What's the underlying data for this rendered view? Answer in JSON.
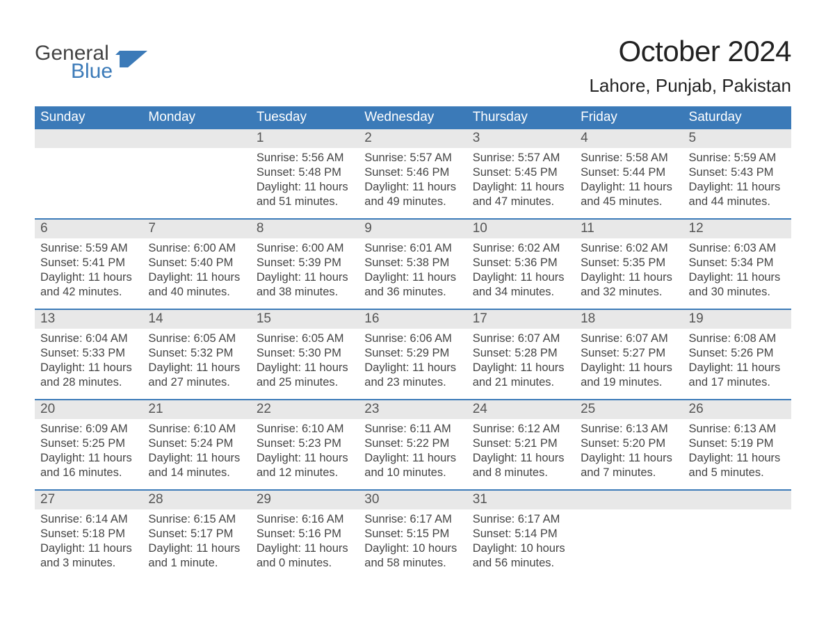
{
  "logo": {
    "text1": "General",
    "text2": "Blue",
    "shape_color": "#3b7ab8",
    "text1_color": "#444444",
    "text2_color": "#3b7ab8"
  },
  "title": "October 2024",
  "location": "Lahore, Punjab, Pakistan",
  "colors": {
    "header_bg": "#3b7ab8",
    "header_fg": "#ffffff",
    "daynum_bg": "#e8e8e8",
    "daynum_fg": "#555555",
    "detail_fg": "#444444",
    "week_border": "#3b7ab8",
    "page_bg": "#ffffff"
  },
  "typography": {
    "title_fontsize": 42,
    "location_fontsize": 26,
    "weekday_fontsize": 19,
    "daynum_fontsize": 19,
    "detail_fontsize": 16.5
  },
  "weekdays": [
    "Sunday",
    "Monday",
    "Tuesday",
    "Wednesday",
    "Thursday",
    "Friday",
    "Saturday"
  ],
  "weeks": [
    [
      {
        "n": "",
        "lines": []
      },
      {
        "n": "",
        "lines": []
      },
      {
        "n": "1",
        "lines": [
          "Sunrise: 5:56 AM",
          "Sunset: 5:48 PM",
          "Daylight: 11 hours and 51 minutes."
        ]
      },
      {
        "n": "2",
        "lines": [
          "Sunrise: 5:57 AM",
          "Sunset: 5:46 PM",
          "Daylight: 11 hours and 49 minutes."
        ]
      },
      {
        "n": "3",
        "lines": [
          "Sunrise: 5:57 AM",
          "Sunset: 5:45 PM",
          "Daylight: 11 hours and 47 minutes."
        ]
      },
      {
        "n": "4",
        "lines": [
          "Sunrise: 5:58 AM",
          "Sunset: 5:44 PM",
          "Daylight: 11 hours and 45 minutes."
        ]
      },
      {
        "n": "5",
        "lines": [
          "Sunrise: 5:59 AM",
          "Sunset: 5:43 PM",
          "Daylight: 11 hours and 44 minutes."
        ]
      }
    ],
    [
      {
        "n": "6",
        "lines": [
          "Sunrise: 5:59 AM",
          "Sunset: 5:41 PM",
          "Daylight: 11 hours and 42 minutes."
        ]
      },
      {
        "n": "7",
        "lines": [
          "Sunrise: 6:00 AM",
          "Sunset: 5:40 PM",
          "Daylight: 11 hours and 40 minutes."
        ]
      },
      {
        "n": "8",
        "lines": [
          "Sunrise: 6:00 AM",
          "Sunset: 5:39 PM",
          "Daylight: 11 hours and 38 minutes."
        ]
      },
      {
        "n": "9",
        "lines": [
          "Sunrise: 6:01 AM",
          "Sunset: 5:38 PM",
          "Daylight: 11 hours and 36 minutes."
        ]
      },
      {
        "n": "10",
        "lines": [
          "Sunrise: 6:02 AM",
          "Sunset: 5:36 PM",
          "Daylight: 11 hours and 34 minutes."
        ]
      },
      {
        "n": "11",
        "lines": [
          "Sunrise: 6:02 AM",
          "Sunset: 5:35 PM",
          "Daylight: 11 hours and 32 minutes."
        ]
      },
      {
        "n": "12",
        "lines": [
          "Sunrise: 6:03 AM",
          "Sunset: 5:34 PM",
          "Daylight: 11 hours and 30 minutes."
        ]
      }
    ],
    [
      {
        "n": "13",
        "lines": [
          "Sunrise: 6:04 AM",
          "Sunset: 5:33 PM",
          "Daylight: 11 hours and 28 minutes."
        ]
      },
      {
        "n": "14",
        "lines": [
          "Sunrise: 6:05 AM",
          "Sunset: 5:32 PM",
          "Daylight: 11 hours and 27 minutes."
        ]
      },
      {
        "n": "15",
        "lines": [
          "Sunrise: 6:05 AM",
          "Sunset: 5:30 PM",
          "Daylight: 11 hours and 25 minutes."
        ]
      },
      {
        "n": "16",
        "lines": [
          "Sunrise: 6:06 AM",
          "Sunset: 5:29 PM",
          "Daylight: 11 hours and 23 minutes."
        ]
      },
      {
        "n": "17",
        "lines": [
          "Sunrise: 6:07 AM",
          "Sunset: 5:28 PM",
          "Daylight: 11 hours and 21 minutes."
        ]
      },
      {
        "n": "18",
        "lines": [
          "Sunrise: 6:07 AM",
          "Sunset: 5:27 PM",
          "Daylight: 11 hours and 19 minutes."
        ]
      },
      {
        "n": "19",
        "lines": [
          "Sunrise: 6:08 AM",
          "Sunset: 5:26 PM",
          "Daylight: 11 hours and 17 minutes."
        ]
      }
    ],
    [
      {
        "n": "20",
        "lines": [
          "Sunrise: 6:09 AM",
          "Sunset: 5:25 PM",
          "Daylight: 11 hours and 16 minutes."
        ]
      },
      {
        "n": "21",
        "lines": [
          "Sunrise: 6:10 AM",
          "Sunset: 5:24 PM",
          "Daylight: 11 hours and 14 minutes."
        ]
      },
      {
        "n": "22",
        "lines": [
          "Sunrise: 6:10 AM",
          "Sunset: 5:23 PM",
          "Daylight: 11 hours and 12 minutes."
        ]
      },
      {
        "n": "23",
        "lines": [
          "Sunrise: 6:11 AM",
          "Sunset: 5:22 PM",
          "Daylight: 11 hours and 10 minutes."
        ]
      },
      {
        "n": "24",
        "lines": [
          "Sunrise: 6:12 AM",
          "Sunset: 5:21 PM",
          "Daylight: 11 hours and 8 minutes."
        ]
      },
      {
        "n": "25",
        "lines": [
          "Sunrise: 6:13 AM",
          "Sunset: 5:20 PM",
          "Daylight: 11 hours and 7 minutes."
        ]
      },
      {
        "n": "26",
        "lines": [
          "Sunrise: 6:13 AM",
          "Sunset: 5:19 PM",
          "Daylight: 11 hours and 5 minutes."
        ]
      }
    ],
    [
      {
        "n": "27",
        "lines": [
          "Sunrise: 6:14 AM",
          "Sunset: 5:18 PM",
          "Daylight: 11 hours and 3 minutes."
        ]
      },
      {
        "n": "28",
        "lines": [
          "Sunrise: 6:15 AM",
          "Sunset: 5:17 PM",
          "Daylight: 11 hours and 1 minute."
        ]
      },
      {
        "n": "29",
        "lines": [
          "Sunrise: 6:16 AM",
          "Sunset: 5:16 PM",
          "Daylight: 11 hours and 0 minutes."
        ]
      },
      {
        "n": "30",
        "lines": [
          "Sunrise: 6:17 AM",
          "Sunset: 5:15 PM",
          "Daylight: 10 hours and 58 minutes."
        ]
      },
      {
        "n": "31",
        "lines": [
          "Sunrise: 6:17 AM",
          "Sunset: 5:14 PM",
          "Daylight: 10 hours and 56 minutes."
        ]
      },
      {
        "n": "",
        "lines": []
      },
      {
        "n": "",
        "lines": []
      }
    ]
  ]
}
